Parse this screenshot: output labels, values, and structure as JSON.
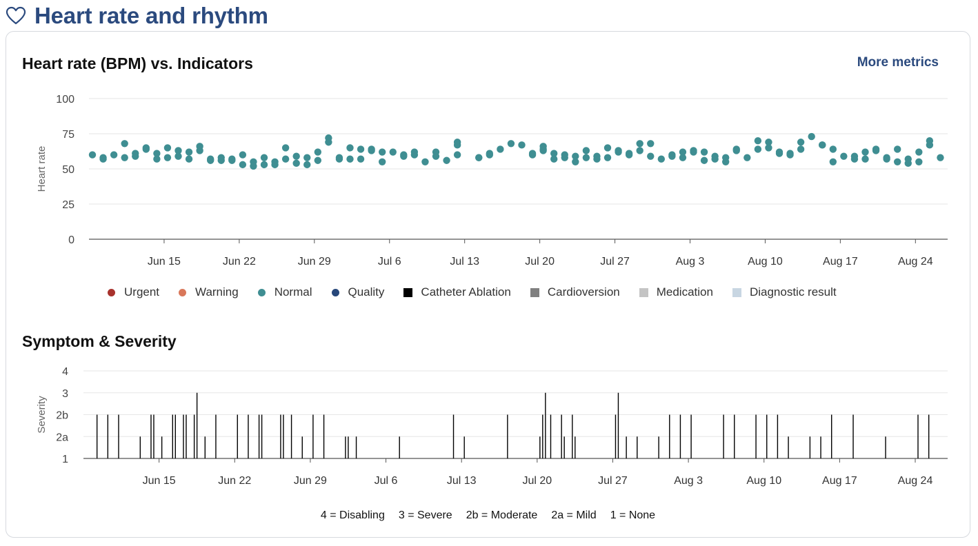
{
  "page": {
    "title": "Heart rate and rhythm",
    "icon": "heart-outline-icon",
    "accent_color": "#2b4a7e"
  },
  "hr_section": {
    "title": "Heart rate (BPM) vs. Indicators",
    "more_link": "More metrics"
  },
  "legend": [
    {
      "label": "Urgent",
      "color": "#a8322d",
      "shape": "dot"
    },
    {
      "label": "Warning",
      "color": "#d9785a",
      "shape": "dot"
    },
    {
      "label": "Normal",
      "color": "#3f8e92",
      "shape": "dot"
    },
    {
      "label": "Quality",
      "color": "#27477a",
      "shape": "dot"
    },
    {
      "label": "Catheter Ablation",
      "color": "#000000",
      "shape": "square"
    },
    {
      "label": "Cardioversion",
      "color": "#808080",
      "shape": "square"
    },
    {
      "label": "Medication",
      "color": "#c4c4c4",
      "shape": "square"
    },
    {
      "label": "Diagnostic result",
      "color": "#c8d6e2",
      "shape": "square"
    }
  ],
  "symptom_section": {
    "title": "Symptom & Severity"
  },
  "severity_legend": [
    "4 = Disabling",
    "3 = Severe",
    "2b = Moderate",
    "2a = Mild",
    "1 = None"
  ],
  "chart_data": [
    {
      "type": "scatter",
      "ylabel": "Heart rate",
      "ylim": [
        0,
        100
      ],
      "yticks": [
        "0",
        "25",
        "50",
        "75",
        "100"
      ],
      "x_tick_labels": [
        "Jun 15",
        "Jun 22",
        "Jun 29",
        "Jul 6",
        "Jul 13",
        "Jul 20",
        "Jul 27",
        "Aug 3",
        "Aug 10",
        "Aug 17",
        "Aug 24"
      ],
      "x_tick_dates": [
        "2024-06-15",
        "2024-06-22",
        "2024-06-29",
        "2024-07-06",
        "2024-07-13",
        "2024-07-20",
        "2024-07-27",
        "2024-08-03",
        "2024-08-10",
        "2024-08-17",
        "2024-08-24"
      ],
      "xlim": [
        "2024-06-08",
        "2024-08-27"
      ],
      "grid": true,
      "series": [
        {
          "name": "Normal",
          "color": "#3f8e92",
          "points": [
            [
              "2024-06-08",
              60
            ],
            [
              "2024-06-09",
              57
            ],
            [
              "2024-06-09",
              58
            ],
            [
              "2024-06-10",
              60
            ],
            [
              "2024-06-11",
              58
            ],
            [
              "2024-06-11",
              68
            ],
            [
              "2024-06-12",
              59
            ],
            [
              "2024-06-12",
              61
            ],
            [
              "2024-06-13",
              64
            ],
            [
              "2024-06-13",
              65
            ],
            [
              "2024-06-14",
              57
            ],
            [
              "2024-06-14",
              61
            ],
            [
              "2024-06-15",
              58
            ],
            [
              "2024-06-15",
              65
            ],
            [
              "2024-06-16",
              59
            ],
            [
              "2024-06-16",
              63
            ],
            [
              "2024-06-17",
              57
            ],
            [
              "2024-06-17",
              62
            ],
            [
              "2024-06-18",
              63
            ],
            [
              "2024-06-18",
              66
            ],
            [
              "2024-06-19",
              56
            ],
            [
              "2024-06-19",
              57
            ],
            [
              "2024-06-20",
              58
            ],
            [
              "2024-06-20",
              56
            ],
            [
              "2024-06-21",
              56
            ],
            [
              "2024-06-21",
              57
            ],
            [
              "2024-06-22",
              60
            ],
            [
              "2024-06-22",
              53
            ],
            [
              "2024-06-23",
              55
            ],
            [
              "2024-06-23",
              52
            ],
            [
              "2024-06-24",
              58
            ],
            [
              "2024-06-24",
              53
            ],
            [
              "2024-06-25",
              55
            ],
            [
              "2024-06-25",
              53
            ],
            [
              "2024-06-26",
              65
            ],
            [
              "2024-06-26",
              57
            ],
            [
              "2024-06-27",
              54
            ],
            [
              "2024-06-27",
              59
            ],
            [
              "2024-06-28",
              53
            ],
            [
              "2024-06-28",
              58
            ],
            [
              "2024-06-29",
              62
            ],
            [
              "2024-06-29",
              56
            ],
            [
              "2024-06-30",
              69
            ],
            [
              "2024-06-30",
              72
            ],
            [
              "2024-07-01",
              57
            ],
            [
              "2024-07-01",
              58
            ],
            [
              "2024-07-02",
              57
            ],
            [
              "2024-07-02",
              65
            ],
            [
              "2024-07-03",
              57
            ],
            [
              "2024-07-03",
              64
            ],
            [
              "2024-07-04",
              63
            ],
            [
              "2024-07-04",
              64
            ],
            [
              "2024-07-05",
              55
            ],
            [
              "2024-07-05",
              62
            ],
            [
              "2024-07-06",
              62
            ],
            [
              "2024-07-07",
              59
            ],
            [
              "2024-07-07",
              60
            ],
            [
              "2024-07-08",
              60
            ],
            [
              "2024-07-08",
              62
            ],
            [
              "2024-07-09",
              55
            ],
            [
              "2024-07-10",
              62
            ],
            [
              "2024-07-10",
              59
            ],
            [
              "2024-07-11",
              56
            ],
            [
              "2024-07-12",
              60
            ],
            [
              "2024-07-12",
              69
            ],
            [
              "2024-07-12",
              67
            ],
            [
              "2024-07-14",
              58
            ],
            [
              "2024-07-14",
              58
            ],
            [
              "2024-07-15",
              61
            ],
            [
              "2024-07-15",
              60
            ],
            [
              "2024-07-16",
              64
            ],
            [
              "2024-07-17",
              68
            ],
            [
              "2024-07-18",
              67
            ],
            [
              "2024-07-19",
              60
            ],
            [
              "2024-07-19",
              61
            ],
            [
              "2024-07-20",
              64
            ],
            [
              "2024-07-20",
              63
            ],
            [
              "2024-07-20",
              66
            ],
            [
              "2024-07-21",
              61
            ],
            [
              "2024-07-21",
              57
            ],
            [
              "2024-07-22",
              60
            ],
            [
              "2024-07-22",
              58
            ],
            [
              "2024-07-23",
              55
            ],
            [
              "2024-07-23",
              59
            ],
            [
              "2024-07-24",
              63
            ],
            [
              "2024-07-24",
              58
            ],
            [
              "2024-07-25",
              57
            ],
            [
              "2024-07-25",
              59
            ],
            [
              "2024-07-26",
              58
            ],
            [
              "2024-07-26",
              65
            ],
            [
              "2024-07-27",
              62
            ],
            [
              "2024-07-27",
              63
            ],
            [
              "2024-07-28",
              61
            ],
            [
              "2024-07-28",
              60
            ],
            [
              "2024-07-29",
              63
            ],
            [
              "2024-07-29",
              68
            ],
            [
              "2024-07-30",
              68
            ],
            [
              "2024-07-30",
              59
            ],
            [
              "2024-07-31",
              57
            ],
            [
              "2024-08-01",
              60
            ],
            [
              "2024-08-01",
              59
            ],
            [
              "2024-08-02",
              62
            ],
            [
              "2024-08-02",
              58
            ],
            [
              "2024-08-03",
              62
            ],
            [
              "2024-08-03",
              63
            ],
            [
              "2024-08-04",
              62
            ],
            [
              "2024-08-04",
              56
            ],
            [
              "2024-08-05",
              59
            ],
            [
              "2024-08-05",
              57
            ],
            [
              "2024-08-06",
              58
            ],
            [
              "2024-08-06",
              55
            ],
            [
              "2024-08-07",
              64
            ],
            [
              "2024-08-07",
              63
            ],
            [
              "2024-08-08",
              58
            ],
            [
              "2024-08-09",
              64
            ],
            [
              "2024-08-09",
              70
            ],
            [
              "2024-08-10",
              69
            ],
            [
              "2024-08-10",
              65
            ],
            [
              "2024-08-11",
              61
            ],
            [
              "2024-08-11",
              62
            ],
            [
              "2024-08-12",
              60
            ],
            [
              "2024-08-12",
              61
            ],
            [
              "2024-08-13",
              64
            ],
            [
              "2024-08-13",
              69
            ],
            [
              "2024-08-14",
              73
            ],
            [
              "2024-08-15",
              67
            ],
            [
              "2024-08-15",
              67
            ],
            [
              "2024-08-16",
              64
            ],
            [
              "2024-08-16",
              55
            ],
            [
              "2024-08-17",
              59
            ],
            [
              "2024-08-18",
              57
            ],
            [
              "2024-08-18",
              59
            ],
            [
              "2024-08-19",
              57
            ],
            [
              "2024-08-19",
              62
            ],
            [
              "2024-08-20",
              64
            ],
            [
              "2024-08-20",
              63
            ],
            [
              "2024-08-21",
              57
            ],
            [
              "2024-08-21",
              58
            ],
            [
              "2024-08-22",
              55
            ],
            [
              "2024-08-22",
              64
            ],
            [
              "2024-08-23",
              54
            ],
            [
              "2024-08-23",
              57
            ],
            [
              "2024-08-24",
              55
            ],
            [
              "2024-08-24",
              62
            ],
            [
              "2024-08-25",
              67
            ],
            [
              "2024-08-25",
              70
            ],
            [
              "2024-08-26",
              58
            ]
          ]
        }
      ]
    },
    {
      "type": "bar",
      "ylabel": "Severity",
      "levels": [
        "1",
        "2a",
        "2b",
        "3",
        "4"
      ],
      "x_tick_labels": [
        "Jun 15",
        "Jun 22",
        "Jun 29",
        "Jul 6",
        "Jul 13",
        "Jul 20",
        "Jul 27",
        "Aug 3",
        "Aug 10",
        "Aug 17",
        "Aug 24"
      ],
      "x_tick_dates": [
        "2024-06-15",
        "2024-06-22",
        "2024-06-29",
        "2024-07-06",
        "2024-07-13",
        "2024-07-20",
        "2024-07-27",
        "2024-08-03",
        "2024-08-10",
        "2024-08-17",
        "2024-08-24"
      ],
      "xlim": [
        "2024-06-08",
        "2024-08-27"
      ],
      "grid": true,
      "color": "#000000",
      "events": [
        [
          "2024-06-09",
          "2b"
        ],
        [
          "2024-06-10",
          "2b"
        ],
        [
          "2024-06-11",
          "2b"
        ],
        [
          "2024-06-13",
          "2a"
        ],
        [
          "2024-06-14",
          "2b"
        ],
        [
          "2024-06-14",
          "2b"
        ],
        [
          "2024-06-15",
          "2a"
        ],
        [
          "2024-06-16",
          "2b"
        ],
        [
          "2024-06-16",
          "2b"
        ],
        [
          "2024-06-17",
          "2b"
        ],
        [
          "2024-06-17",
          "2b"
        ],
        [
          "2024-06-18",
          "2b"
        ],
        [
          "2024-06-18",
          "3"
        ],
        [
          "2024-06-19",
          "2a"
        ],
        [
          "2024-06-20",
          "2b"
        ],
        [
          "2024-06-22",
          "2b"
        ],
        [
          "2024-06-23",
          "2b"
        ],
        [
          "2024-06-24",
          "2b"
        ],
        [
          "2024-06-24",
          "2b"
        ],
        [
          "2024-06-26",
          "2b"
        ],
        [
          "2024-06-26",
          "2b"
        ],
        [
          "2024-06-27",
          "2b"
        ],
        [
          "2024-06-28",
          "2a"
        ],
        [
          "2024-06-29",
          "2b"
        ],
        [
          "2024-06-30",
          "2b"
        ],
        [
          "2024-07-02",
          "2a"
        ],
        [
          "2024-07-02",
          "2a"
        ],
        [
          "2024-07-03",
          "2a"
        ],
        [
          "2024-07-07",
          "2a"
        ],
        [
          "2024-07-12",
          "2b"
        ],
        [
          "2024-07-13",
          "2a"
        ],
        [
          "2024-07-17",
          "2b"
        ],
        [
          "2024-07-20",
          "2a"
        ],
        [
          "2024-07-20",
          "2b"
        ],
        [
          "2024-07-20",
          "3"
        ],
        [
          "2024-07-21",
          "2b"
        ],
        [
          "2024-07-22",
          "2b"
        ],
        [
          "2024-07-22",
          "2a"
        ],
        [
          "2024-07-23",
          "2b"
        ],
        [
          "2024-07-23",
          "2a"
        ],
        [
          "2024-07-27",
          "2b"
        ],
        [
          "2024-07-27",
          "3"
        ],
        [
          "2024-07-28",
          "2a"
        ],
        [
          "2024-07-29",
          "2a"
        ],
        [
          "2024-07-31",
          "2a"
        ],
        [
          "2024-08-01",
          "2b"
        ],
        [
          "2024-08-02",
          "2b"
        ],
        [
          "2024-08-03",
          "2b"
        ],
        [
          "2024-08-06",
          "2b"
        ],
        [
          "2024-08-07",
          "2b"
        ],
        [
          "2024-08-09",
          "2b"
        ],
        [
          "2024-08-10",
          "2b"
        ],
        [
          "2024-08-11",
          "2b"
        ],
        [
          "2024-08-12",
          "2a"
        ],
        [
          "2024-08-14",
          "2a"
        ],
        [
          "2024-08-15",
          "2a"
        ],
        [
          "2024-08-16",
          "2b"
        ],
        [
          "2024-08-18",
          "2b"
        ],
        [
          "2024-08-21",
          "2a"
        ],
        [
          "2024-08-24",
          "2b"
        ],
        [
          "2024-08-25",
          "2b"
        ]
      ]
    }
  ]
}
